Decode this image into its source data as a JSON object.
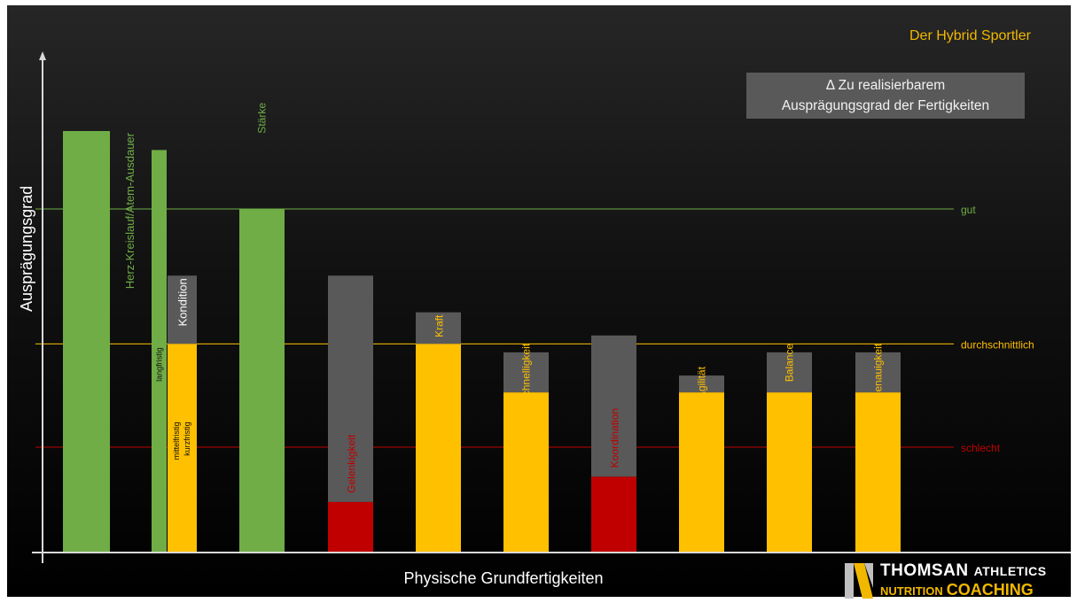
{
  "header": {
    "brand": "Der Hybrid Sportler"
  },
  "legend_box": {
    "line1": "Δ Zu realisierbarem",
    "line2": "Ausprägungsgrad der Fertigkeiten"
  },
  "logo": {
    "name": "THOMSAN",
    "athletics": "ATHLETICS",
    "nutrition": "NUTRITION",
    "coaching": "COACHING"
  },
  "colors": {
    "green": "#70ad47",
    "yellow": "#ffc000",
    "gray": "#595959",
    "red": "#c00000",
    "accent": "#f2b800"
  },
  "chart_data": {
    "type": "bar",
    "xlabel": "Physische Grundfertigkeiten",
    "ylabel": "Ausprägungsgrad",
    "ylim": [
      0,
      100
    ],
    "reference_lines": [
      {
        "label": "gut",
        "value": 81.5,
        "color": "#70ad47"
      },
      {
        "label": "durchschnittlich",
        "value": 49.5,
        "color": "#ffc000"
      },
      {
        "label": "schlecht",
        "value": 25,
        "color": "#c00000"
      }
    ],
    "bars": [
      {
        "label": "Herz-Kreislauf/Atem-Ausdauer",
        "label_color": "#70ad47",
        "label_pos": "above",
        "segments": [
          {
            "from": 0,
            "to": 100,
            "color": "#70ad47"
          }
        ]
      },
      {
        "label": "langfristig",
        "label_color": "#111111",
        "label_pos": "inside-left",
        "width": "narrow",
        "segments": [
          {
            "from": 0,
            "to": 95.5,
            "color": "#70ad47"
          }
        ]
      },
      {
        "label": "Kondition",
        "label_color": "#ffffff",
        "label_pos": "top-gray",
        "sub_labels": [
          "mittelfristig",
          "kurzfristig"
        ],
        "segments": [
          {
            "from": 0,
            "to": 49.5,
            "color": "#ffc000"
          },
          {
            "from": 49.5,
            "to": 65.7,
            "color": "#595959"
          }
        ]
      },
      {
        "label": "Stärke",
        "label_color": "#70ad47",
        "label_pos": "above",
        "segments": [
          {
            "from": 0,
            "to": 81.5,
            "color": "#70ad47"
          }
        ]
      },
      {
        "label": "Gelenkigkeit",
        "label_color": "#c00000",
        "label_pos": "inside",
        "segments": [
          {
            "from": 0,
            "to": 12,
            "color": "#c00000"
          },
          {
            "from": 12,
            "to": 65.7,
            "color": "#595959"
          }
        ]
      },
      {
        "label": "Kraft",
        "label_color": "#ffc000",
        "label_pos": "top-gray",
        "segments": [
          {
            "from": 0,
            "to": 49.5,
            "color": "#ffc000"
          },
          {
            "from": 49.5,
            "to": 57,
            "color": "#595959"
          }
        ]
      },
      {
        "label": "Schnelligkeit",
        "label_color": "#ffc000",
        "label_pos": "above",
        "segments": [
          {
            "from": 0,
            "to": 38,
            "color": "#ffc000"
          },
          {
            "from": 38,
            "to": 47.5,
            "color": "#595959"
          }
        ]
      },
      {
        "label": "Koordination",
        "label_color": "#c00000",
        "label_pos": "inside",
        "segments": [
          {
            "from": 0,
            "to": 18,
            "color": "#c00000"
          },
          {
            "from": 18,
            "to": 51.5,
            "color": "#595959"
          }
        ]
      },
      {
        "label": "Agilität",
        "label_color": "#ffc000",
        "label_pos": "above",
        "segments": [
          {
            "from": 0,
            "to": 38,
            "color": "#ffc000"
          },
          {
            "from": 38,
            "to": 42,
            "color": "#595959"
          }
        ]
      },
      {
        "label": "Balance",
        "label_color": "#ffc000",
        "label_pos": "above",
        "segments": [
          {
            "from": 0,
            "to": 38,
            "color": "#ffc000"
          },
          {
            "from": 38,
            "to": 47.5,
            "color": "#595959"
          }
        ]
      },
      {
        "label": "Genauigkeit",
        "label_color": "#ffc000",
        "label_pos": "above",
        "segments": [
          {
            "from": 0,
            "to": 38,
            "color": "#ffc000"
          },
          {
            "from": 38,
            "to": 47.5,
            "color": "#595959"
          }
        ]
      }
    ]
  }
}
